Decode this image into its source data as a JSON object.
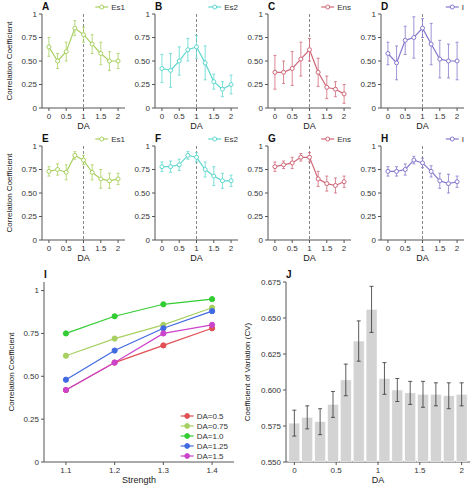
{
  "chart_data": [
    {
      "type": "line",
      "title": "A",
      "x": [
        0.0,
        0.25,
        0.5,
        0.75,
        1.0,
        1.25,
        1.5,
        1.75,
        2.0
      ],
      "series": [
        {
          "name": "Es1",
          "color": "#a8d060",
          "marker": "circle",
          "values": [
            0.65,
            0.5,
            0.6,
            0.85,
            0.78,
            0.68,
            0.58,
            0.5,
            0.5
          ],
          "errors": [
            0.1,
            0.08,
            0.1,
            0.08,
            0.08,
            0.1,
            0.12,
            0.1,
            0.08
          ]
        }
      ],
      "vline": 1.0,
      "xlim": [
        -0.2,
        2.2
      ],
      "xticks": [
        0,
        0.5,
        1,
        1.5,
        2
      ],
      "ylim": [
        0,
        1
      ],
      "yticks": [
        0,
        0.25,
        {
          "value": 0.5,
          "label": "0.50"
        },
        0.75,
        1
      ],
      "xlabel": "DA",
      "ylabel": "Correlation Coefficient",
      "legend": "upper right",
      "grid": false
    },
    {
      "type": "line",
      "title": "B",
      "x": [
        0.0,
        0.25,
        0.5,
        0.75,
        1.0,
        1.25,
        1.5,
        1.75,
        2.0
      ],
      "series": [
        {
          "name": "Es2",
          "color": "#60d8d0",
          "marker": "circle",
          "values": [
            0.42,
            0.4,
            0.5,
            0.62,
            0.65,
            0.48,
            0.28,
            0.2,
            0.25
          ],
          "errors": [
            0.15,
            0.18,
            0.15,
            0.12,
            0.12,
            0.18,
            0.08,
            0.08,
            0.1
          ]
        }
      ],
      "vline": 1.0,
      "xlim": [
        -0.2,
        2.2
      ],
      "xticks": [
        0,
        0.5,
        1,
        1.5,
        2
      ],
      "ylim": [
        0,
        1
      ],
      "yticks": [
        0,
        0.25,
        {
          "value": 0.5,
          "label": "0.50"
        },
        0.75,
        1
      ],
      "xlabel": "DA",
      "legend": "upper right",
      "grid": false
    },
    {
      "type": "line",
      "title": "C",
      "x": [
        0.0,
        0.25,
        0.5,
        0.75,
        1.0,
        1.25,
        1.5,
        1.75,
        2.0
      ],
      "series": [
        {
          "name": "Ens",
          "color": "#d06878",
          "marker": "circle",
          "values": [
            0.38,
            0.38,
            0.42,
            0.52,
            0.62,
            0.38,
            0.22,
            0.2,
            0.15
          ],
          "errors": [
            0.18,
            0.12,
            0.18,
            0.18,
            0.12,
            0.15,
            0.12,
            0.08,
            0.1
          ]
        }
      ],
      "vline": 1.0,
      "xlim": [
        -0.2,
        2.2
      ],
      "xticks": [
        0,
        0.5,
        1,
        1.5,
        2
      ],
      "ylim": [
        0,
        1
      ],
      "yticks": [
        0,
        0.25,
        {
          "value": 0.5,
          "label": "0.50"
        },
        0.75,
        1
      ],
      "xlabel": "DA",
      "legend": "upper right",
      "grid": false
    },
    {
      "type": "line",
      "title": "D",
      "x": [
        0.0,
        0.25,
        0.5,
        0.75,
        1.0,
        1.25,
        1.5,
        1.75,
        2.0
      ],
      "series": [
        {
          "name": "I",
          "color": "#8878cc",
          "marker": "circle",
          "values": [
            0.58,
            0.48,
            0.72,
            0.75,
            0.85,
            0.68,
            0.52,
            0.5,
            0.5
          ],
          "errors": [
            0.12,
            0.18,
            0.15,
            0.22,
            0.1,
            0.22,
            0.2,
            0.18,
            0.2
          ]
        }
      ],
      "vline": 1.0,
      "xlim": [
        -0.2,
        2.2
      ],
      "xticks": [
        0,
        0.5,
        1,
        1.5,
        2
      ],
      "ylim": [
        0,
        1
      ],
      "yticks": [
        0,
        0.25,
        {
          "value": 0.5,
          "label": "0.50"
        },
        0.75,
        1
      ],
      "xlabel": "DA",
      "legend": "upper right",
      "grid": false
    },
    {
      "type": "line",
      "title": "E",
      "x": [
        0.0,
        0.25,
        0.5,
        0.75,
        1.0,
        1.25,
        1.5,
        1.75,
        2.0
      ],
      "series": [
        {
          "name": "Es1",
          "color": "#a8d060",
          "marker": "circle",
          "values": [
            0.73,
            0.75,
            0.72,
            0.9,
            0.85,
            0.72,
            0.65,
            0.63,
            0.65
          ],
          "errors": [
            0.05,
            0.06,
            0.08,
            0.04,
            0.05,
            0.08,
            0.1,
            0.08,
            0.06
          ]
        }
      ],
      "vline": 1.0,
      "xlim": [
        -0.2,
        2.2
      ],
      "xticks": [
        0,
        0.5,
        1,
        1.5,
        2
      ],
      "ylim": [
        0,
        1
      ],
      "yticks": [
        0,
        0.25,
        {
          "value": 0.5,
          "label": "0.50"
        },
        0.75,
        1
      ],
      "xlabel": "DA",
      "ylabel": "Correlation Coefficient",
      "legend": "upper right",
      "grid": false
    },
    {
      "type": "line",
      "title": "F",
      "x": [
        0.0,
        0.25,
        0.5,
        0.75,
        1.0,
        1.25,
        1.5,
        1.75,
        2.0
      ],
      "series": [
        {
          "name": "Es2",
          "color": "#60d8d0",
          "marker": "circle",
          "values": [
            0.78,
            0.78,
            0.8,
            0.9,
            0.88,
            0.75,
            0.68,
            0.63,
            0.63
          ],
          "errors": [
            0.05,
            0.06,
            0.06,
            0.04,
            0.05,
            0.08,
            0.1,
            0.08,
            0.06
          ]
        }
      ],
      "vline": 1.0,
      "xlim": [
        -0.2,
        2.2
      ],
      "xticks": [
        0,
        0.5,
        1,
        1.5,
        2
      ],
      "ylim": [
        0,
        1
      ],
      "yticks": [
        0,
        0.25,
        {
          "value": 0.5,
          "label": "0.50"
        },
        0.75,
        1
      ],
      "xlabel": "DA",
      "legend": "upper right",
      "grid": false
    },
    {
      "type": "line",
      "title": "G",
      "x": [
        0.0,
        0.25,
        0.5,
        0.75,
        1.0,
        1.25,
        1.5,
        1.75,
        2.0
      ],
      "series": [
        {
          "name": "Ens",
          "color": "#d06878",
          "marker": "circle",
          "values": [
            0.78,
            0.8,
            0.82,
            0.88,
            0.88,
            0.65,
            0.6,
            0.58,
            0.62
          ],
          "errors": [
            0.05,
            0.04,
            0.06,
            0.04,
            0.05,
            0.08,
            0.08,
            0.08,
            0.06
          ]
        }
      ],
      "vline": 1.0,
      "xlim": [
        -0.2,
        2.2
      ],
      "xticks": [
        0,
        0.5,
        1,
        1.5,
        2
      ],
      "ylim": [
        0,
        1
      ],
      "yticks": [
        0,
        0.25,
        {
          "value": 0.5,
          "label": "0.50"
        },
        0.75,
        1
      ],
      "xlabel": "DA",
      "legend": "upper right",
      "grid": false
    },
    {
      "type": "line",
      "title": "H",
      "x": [
        0.0,
        0.25,
        0.5,
        0.75,
        1.0,
        1.25,
        1.5,
        1.75,
        2.0
      ],
      "series": [
        {
          "name": "I",
          "color": "#8878cc",
          "marker": "circle",
          "values": [
            0.73,
            0.73,
            0.75,
            0.85,
            0.82,
            0.73,
            0.63,
            0.6,
            0.62
          ],
          "errors": [
            0.05,
            0.05,
            0.06,
            0.04,
            0.05,
            0.06,
            0.08,
            0.1,
            0.06
          ]
        }
      ],
      "vline": 1.0,
      "xlim": [
        -0.2,
        2.2
      ],
      "xticks": [
        0,
        0.5,
        1,
        1.5,
        2
      ],
      "ylim": [
        0,
        1
      ],
      "yticks": [
        0,
        0.25,
        {
          "value": 0.5,
          "label": "0.50"
        },
        0.75,
        1
      ],
      "xlabel": "DA",
      "legend": "upper right",
      "grid": false
    },
    {
      "type": "line",
      "title": "I",
      "x": [
        1.1,
        1.2,
        1.3,
        1.4
      ],
      "series": [
        {
          "name": "DA=0.5",
          "color": "#e05055",
          "marker": "circle",
          "values": [
            0.42,
            0.58,
            0.68,
            0.78
          ]
        },
        {
          "name": "DA=0.75",
          "color": "#a8d060",
          "marker": "circle",
          "values": [
            0.62,
            0.72,
            0.8,
            0.9
          ]
        },
        {
          "name": "DA=1.0",
          "color": "#32cd32",
          "marker": "circle",
          "values": [
            0.75,
            0.85,
            0.92,
            0.95
          ]
        },
        {
          "name": "DA=1.25",
          "color": "#4169e1",
          "marker": "circle",
          "values": [
            0.48,
            0.65,
            0.78,
            0.88
          ]
        },
        {
          "name": "DA=1.5",
          "color": "#cc44cc",
          "marker": "circle",
          "values": [
            0.42,
            0.58,
            0.75,
            0.8
          ]
        }
      ],
      "xlim": [
        1.055,
        1.445
      ],
      "xticks": [
        1.1,
        1.2,
        1.3,
        1.4
      ],
      "ylim": [
        0,
        1.05
      ],
      "yticks": [
        0,
        0.25,
        {
          "value": 0.5,
          "label": "0.50"
        },
        0.75,
        1
      ],
      "xlabel": "Strength",
      "ylabel": "Correlation Coefficient",
      "legend": "lower right",
      "grid": false
    },
    {
      "type": "bar",
      "title": "J",
      "x": [
        0.0,
        0.154,
        0.308,
        0.462,
        0.615,
        0.769,
        0.923,
        1.077,
        1.231,
        1.385,
        1.538,
        1.692,
        1.846,
        2.0
      ],
      "values": [
        0.577,
        0.581,
        0.578,
        0.59,
        0.607,
        0.634,
        0.656,
        0.608,
        0.6,
        0.598,
        0.597,
        0.597,
        0.596,
        0.597
      ],
      "errors": [
        0.009,
        0.008,
        0.009,
        0.009,
        0.011,
        0.014,
        0.016,
        0.011,
        0.008,
        0.008,
        0.009,
        0.008,
        0.009,
        0.008
      ],
      "color": "#d3d3d3",
      "xlim": [
        -0.1,
        2.1
      ],
      "xticks": [
        0,
        0.5,
        1,
        1.5,
        2
      ],
      "ylim": [
        0.55,
        0.675
      ],
      "yticks": [
        {
          "value": 0.55,
          "label": "0.550"
        },
        0.575,
        {
          "value": 0.6,
          "label": "0.600"
        },
        0.625,
        {
          "value": 0.65,
          "label": "0.650"
        },
        0.675
      ],
      "xlabel": "DA",
      "ylabel": "Coefficient of Variation (CV)",
      "grid": false
    }
  ]
}
